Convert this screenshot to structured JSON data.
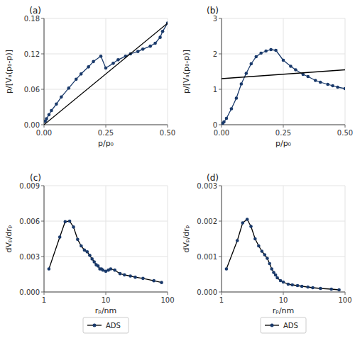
{
  "chart_data": [
    {
      "type": "line",
      "title": "(a)",
      "xlabel": "p/p₀",
      "ylabel": "p/[Vₐ(p₀-p)]",
      "xlim": [
        0,
        0.5
      ],
      "ylim": [
        0,
        0.18
      ],
      "xticks": [
        {
          "value": 0,
          "label": "0.00"
        },
        {
          "value": 0.25,
          "label": "0.25"
        },
        {
          "value": 0.5,
          "label": "0.50"
        }
      ],
      "yticks": [
        {
          "value": 0,
          "label": "0.00"
        },
        {
          "value": 0.06,
          "label": "0.06"
        },
        {
          "value": 0.12,
          "label": "0.12"
        },
        {
          "value": 0.18,
          "label": "0.18"
        }
      ],
      "grid": true,
      "series": [
        {
          "x": [
            0.005,
            0.01,
            0.02,
            0.03,
            0.05,
            0.07,
            0.1,
            0.13,
            0.15,
            0.18,
            0.2,
            0.23,
            0.25,
            0.28,
            0.3,
            0.33,
            0.35,
            0.38,
            0.4,
            0.43,
            0.45,
            0.47,
            0.48,
            0.5
          ],
          "values": [
            0.006,
            0.01,
            0.017,
            0.024,
            0.035,
            0.047,
            0.062,
            0.077,
            0.086,
            0.098,
            0.107,
            0.116,
            0.096,
            0.104,
            0.11,
            0.116,
            0.12,
            0.124,
            0.128,
            0.133,
            0.138,
            0.148,
            0.158,
            0.172
          ],
          "color": "#1a3a6b",
          "marker": "circle"
        },
        {
          "x": [
            0.0,
            0.5
          ],
          "values": [
            0.0,
            0.172
          ],
          "color": "#000000"
        }
      ]
    },
    {
      "type": "line",
      "title": "(b)",
      "xlabel": "p/p₀",
      "ylabel": "p/[Vₐ(p₀-p)]",
      "xlim": [
        0,
        0.5
      ],
      "ylim": [
        0,
        3
      ],
      "xticks": [
        {
          "value": 0,
          "label": "0.00"
        },
        {
          "value": 0.25,
          "label": "0.25"
        },
        {
          "value": 0.5,
          "label": "0.50"
        }
      ],
      "yticks": [
        0,
        1,
        2,
        3
      ],
      "grid": true,
      "series": [
        {
          "x": [
            0.005,
            0.01,
            0.02,
            0.04,
            0.06,
            0.08,
            0.1,
            0.12,
            0.14,
            0.16,
            0.18,
            0.2,
            0.22,
            0.25,
            0.28,
            0.3,
            0.33,
            0.35,
            0.38,
            0.4,
            0.43,
            0.45,
            0.47,
            0.5
          ],
          "values": [
            0.04,
            0.08,
            0.18,
            0.45,
            0.75,
            1.15,
            1.45,
            1.72,
            1.92,
            2.02,
            2.08,
            2.12,
            2.1,
            1.82,
            1.65,
            1.55,
            1.42,
            1.36,
            1.25,
            1.2,
            1.14,
            1.1,
            1.06,
            1.02
          ],
          "color": "#1a3a6b",
          "marker": "circle"
        },
        {
          "x": [
            0.0,
            0.5
          ],
          "values": [
            1.3,
            1.55
          ],
          "color": "#000000"
        }
      ]
    },
    {
      "type": "line",
      "title": "(c)",
      "xlabel": "rₚ/nm",
      "ylabel": "dVₚ/drₚ",
      "log": "x",
      "xlim": [
        1,
        100
      ],
      "ylim": [
        0,
        0.009
      ],
      "xticks": [
        1,
        10,
        100
      ],
      "yticks": [
        {
          "value": 0,
          "label": "0.000"
        },
        {
          "value": 0.003,
          "label": "0.003"
        },
        {
          "value": 0.006,
          "label": "0.006"
        },
        {
          "value": 0.009,
          "label": "0.009"
        }
      ],
      "grid": true,
      "legend": "bottom",
      "series": [
        {
          "name": "ADS",
          "x": [
            1.2,
            1.8,
            2.2,
            2.6,
            3.0,
            3.5,
            4.0,
            4.5,
            5.0,
            5.5,
            6.0,
            6.5,
            7.0,
            7.5,
            8.0,
            8.5,
            9.0,
            10.0,
            11.0,
            12.0,
            14.0,
            17.0,
            20.0,
            25.0,
            30.0,
            40.0,
            60.0,
            80.0
          ],
          "values": [
            0.00195,
            0.00465,
            0.00595,
            0.006,
            0.0055,
            0.00445,
            0.0039,
            0.00355,
            0.0034,
            0.0031,
            0.0028,
            0.00255,
            0.0023,
            0.0022,
            0.00195,
            0.00195,
            0.00185,
            0.00175,
            0.00185,
            0.00195,
            0.00185,
            0.00155,
            0.00145,
            0.00135,
            0.00125,
            0.00115,
            0.00095,
            0.0008
          ],
          "color": "#000000",
          "marker": "circle",
          "colors": [
            "#1a3a6b",
            "#1a3a6b",
            "#1a3a6b",
            "#1a3a6b",
            "#1a3a6b",
            "#1a3a6b",
            "#1a3a6b",
            "#1a3a6b",
            "#1a3a6b",
            "#1a3a6b",
            "#1a3a6b",
            "#1a3a6b",
            "#1a3a6b",
            "#1a3a6b",
            "#1a3a6b",
            "#1a3a6b",
            "#1a3a6b",
            "#1a3a6b",
            "#1a3a6b",
            "#1a3a6b",
            "#1a3a6b",
            "#1a3a6b",
            "#1a3a6b",
            "#1a3a6b",
            "#1a3a6b",
            "#1a3a6b",
            "#1a3a6b",
            "#1a3a6b"
          ]
        }
      ]
    },
    {
      "type": "line",
      "title": "(d)",
      "xlabel": "rₚ/nm",
      "ylabel": "dVₚ/drₚ",
      "log": "x",
      "xlim": [
        1,
        100
      ],
      "ylim": [
        0,
        0.003
      ],
      "xticks": [
        1,
        10,
        100
      ],
      "yticks": [
        {
          "value": 0,
          "label": "0.000"
        },
        {
          "value": 0.001,
          "label": "0.001"
        },
        {
          "value": 0.002,
          "label": "0.002"
        },
        {
          "value": 0.003,
          "label": "0.003"
        }
      ],
      "grid": true,
      "legend": "bottom",
      "series": [
        {
          "name": "ADS",
          "x": [
            1.2,
            1.8,
            2.2,
            2.6,
            3.0,
            3.5,
            4.0,
            4.5,
            5.0,
            5.5,
            6.0,
            6.5,
            7.0,
            7.5,
            8.0,
            9.0,
            10.0,
            12.0,
            14.0,
            17.0,
            20.0,
            25.0,
            30.0,
            40.0,
            60.0,
            80.0
          ],
          "values": [
            0.00065,
            0.00145,
            0.00195,
            0.00205,
            0.00185,
            0.0015,
            0.0013,
            0.00115,
            0.00105,
            0.00095,
            0.0008,
            0.00065,
            0.00055,
            0.00048,
            0.0004,
            0.00032,
            0.00028,
            0.00022,
            0.0002,
            0.00018,
            0.00016,
            0.00014,
            0.00012,
            0.0001,
            8e-05,
            6e-05
          ],
          "color": "#000000",
          "marker": "circle",
          "colors": [
            "#1a3a6b",
            "#1a3a6b",
            "#1a3a6b",
            "#1a3a6b",
            "#1a3a6b",
            "#1a3a6b",
            "#1a3a6b",
            "#1a3a6b",
            "#1a3a6b",
            "#1a3a6b",
            "#1a3a6b",
            "#1a3a6b",
            "#1a3a6b",
            "#1a3a6b",
            "#1a3a6b",
            "#1a3a6b",
            "#1a3a6b",
            "#1a3a6b",
            "#1a3a6b",
            "#1a3a6b",
            "#1a3a6b",
            "#1a3a6b",
            "#1a3a6b",
            "#1a3a6b",
            "#1a3a6b",
            "#1a3a6b"
          ]
        }
      ]
    }
  ]
}
